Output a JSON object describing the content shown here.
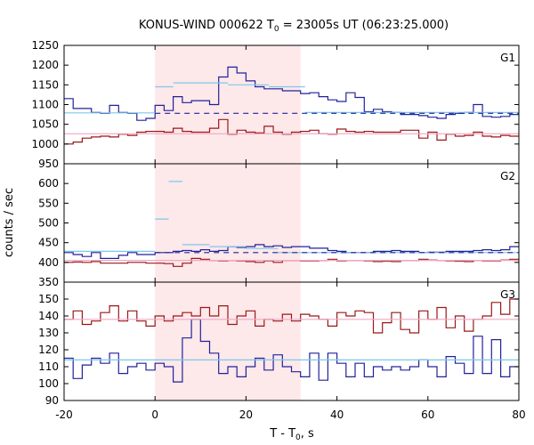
{
  "chart_data": {
    "type": "line",
    "title": "KONUS-WIND 000622 T",
    "title_sub": "0",
    "title_rest": " = 23005s UT (06:23:25.000)",
    "xlabel": "T - T",
    "xlabel_sub": "0",
    "xlabel_rest": ", s",
    "ylabel": "counts / sec",
    "xlim": [
      -20,
      80
    ],
    "x_ticks": [
      "-20",
      "0",
      "20",
      "40",
      "60",
      "80"
    ],
    "x_tick_values": [
      -20,
      0,
      20,
      40,
      60,
      80
    ],
    "bin_width": 2,
    "bin_start": -20,
    "highlight_interval": [
      0,
      32
    ],
    "colors": {
      "highlight": "#fde8ea",
      "blue": "#22229a",
      "red": "#9a1818",
      "light_blue": "#7ec8ec",
      "pink": "#f2a6c4"
    },
    "panels": [
      {
        "label": "G1",
        "ylim": [
          950,
          1250
        ],
        "y_ticks": [
          "950",
          "1000",
          "1050",
          "1100",
          "1150",
          "1200",
          "1250"
        ],
        "y_tick_values": [
          950,
          1000,
          1050,
          1100,
          1150,
          1200,
          1250
        ],
        "series": [
          {
            "color_key": "blue",
            "values": [
              1115,
              1090,
              1090,
              1080,
              1078,
              1098,
              1080,
              1078,
              1060,
              1065,
              1098,
              1085,
              1120,
              1105,
              1110,
              1110,
              1100,
              1170,
              1195,
              1180,
              1160,
              1145,
              1140,
              1140,
              1135,
              1135,
              1128,
              1130,
              1120,
              1112,
              1108,
              1130,
              1118,
              1082,
              1088,
              1082,
              1080,
              1075,
              1075,
              1072,
              1068,
              1065,
              1075,
              1078,
              1080,
              1100,
              1070,
              1068,
              1070,
              1075,
              1068
            ]
          },
          {
            "color_key": "red",
            "values": [
              1000,
              1005,
              1015,
              1018,
              1020,
              1018,
              1025,
              1022,
              1030,
              1032,
              1032,
              1030,
              1040,
              1032,
              1030,
              1030,
              1040,
              1062,
              1025,
              1035,
              1030,
              1028,
              1045,
              1030,
              1025,
              1030,
              1032,
              1035,
              1026,
              1025,
              1038,
              1032,
              1030,
              1032,
              1030,
              1030,
              1030,
              1035,
              1035,
              1015,
              1030,
              1010,
              1025,
              1020,
              1022,
              1030,
              1020,
              1018,
              1022,
              1020,
              1022
            ]
          }
        ],
        "lines": [
          {
            "color_key": "light_blue",
            "style": "solid",
            "segments": [
              [
                -20,
                1079,
                0,
                1079
              ],
              [
                0,
                1145,
                4,
                1145
              ],
              [
                4,
                1155,
                16,
                1155
              ],
              [
                16,
                1150,
                25,
                1150
              ],
              [
                25,
                1145,
                33,
                1145
              ],
              [
                33,
                1080,
                80,
                1080
              ]
            ]
          },
          {
            "color_key": "blue",
            "style": "dashed",
            "segments": [
              [
                0,
                1078,
                80,
                1078
              ]
            ]
          },
          {
            "color_key": "pink",
            "style": "solid",
            "segments": [
              [
                -20,
                1026,
                80,
                1026
              ]
            ]
          }
        ]
      },
      {
        "label": "G2",
        "ylim": [
          350,
          650
        ],
        "y_ticks": [
          "350",
          "400",
          "450",
          "500",
          "550",
          "600"
        ],
        "y_tick_values": [
          350,
          400,
          450,
          500,
          550,
          600
        ],
        "series": [
          {
            "color_key": "blue",
            "values": [
              425,
              420,
              415,
              425,
              410,
              410,
              418,
              425,
              420,
              420,
              425,
              425,
              428,
              430,
              428,
              432,
              428,
              430,
              440,
              438,
              440,
              445,
              440,
              442,
              438,
              440,
              440,
              436,
              436,
              430,
              428,
              425,
              425,
              425,
              428,
              428,
              430,
              428,
              428,
              425,
              426,
              426,
              428,
              428,
              428,
              430,
              432,
              430,
              432,
              440,
              448
            ]
          },
          {
            "color_key": "red",
            "values": [
              400,
              401,
              400,
              402,
              398,
              398,
              398,
              400,
              400,
              398,
              398,
              397,
              390,
              398,
              410,
              408,
              405,
              404,
              405,
              404,
              402,
              400,
              404,
              400,
              405,
              405,
              404,
              404,
              405,
              408,
              404,
              405,
              405,
              404,
              402,
              403,
              402,
              405,
              405,
              408,
              406,
              405,
              404,
              403,
              402,
              405,
              404,
              404,
              406,
              408,
              408
            ]
          }
        ],
        "lines": [
          {
            "color_key": "light_blue",
            "style": "solid",
            "segments": [
              [
                -20,
                428,
                0,
                428
              ],
              [
                0,
                510,
                3,
                510
              ],
              [
                3,
                605,
                6,
                605
              ],
              [
                6,
                445,
                12,
                445
              ],
              [
                12,
                440,
                20,
                440
              ],
              [
                20,
                435,
                27,
                435
              ],
              [
                27,
                425,
                80,
                425
              ]
            ]
          },
          {
            "color_key": "blue",
            "style": "dashed",
            "segments": [
              [
                0,
                425,
                80,
                425
              ]
            ]
          },
          {
            "color_key": "pink",
            "style": "solid",
            "segments": [
              [
                -20,
                405,
                80,
                405
              ]
            ]
          }
        ]
      },
      {
        "label": "G3",
        "ylim": [
          90,
          160
        ],
        "y_ticks": [
          "90",
          "100",
          "110",
          "120",
          "130",
          "140",
          "150"
        ],
        "y_tick_values": [
          90,
          100,
          110,
          120,
          130,
          140,
          150
        ],
        "series": [
          {
            "color_key": "red",
            "values": [
              138,
              143,
              135,
              137,
              142,
              146,
              137,
              143,
              137,
              134,
              140,
              137,
              140,
              142,
              140,
              145,
              140,
              146,
              135,
              140,
              143,
              134,
              138,
              137,
              141,
              137,
              141,
              140,
              138,
              134,
              142,
              140,
              143,
              142,
              130,
              136,
              142,
              132,
              130,
              143,
              138,
              145,
              133,
              140,
              131,
              138,
              140,
              148,
              141,
              150,
              141,
              145,
              150,
              147,
              138,
              150,
              141
            ]
          },
          {
            "color_key": "blue",
            "values": [
              115,
              103,
              111,
              115,
              112,
              118,
              106,
              110,
              112,
              108,
              112,
              110,
              101,
              127,
              138,
              125,
              118,
              106,
              110,
              104,
              110,
              115,
              108,
              117,
              110,
              107,
              104,
              118,
              102,
              118,
              112,
              104,
              112,
              104,
              110,
              108,
              110,
              108,
              110,
              114,
              110,
              104,
              116,
              112,
              106,
              128,
              106,
              126,
              104,
              110,
              118,
              114,
              112
            ]
          }
        ],
        "lines": [
          {
            "color_key": "pink",
            "style": "solid",
            "segments": [
              [
                -20,
                138,
                80,
                138
              ]
            ]
          },
          {
            "color_key": "light_blue",
            "style": "solid",
            "segments": [
              [
                -20,
                114,
                80,
                114
              ]
            ]
          }
        ]
      }
    ]
  }
}
